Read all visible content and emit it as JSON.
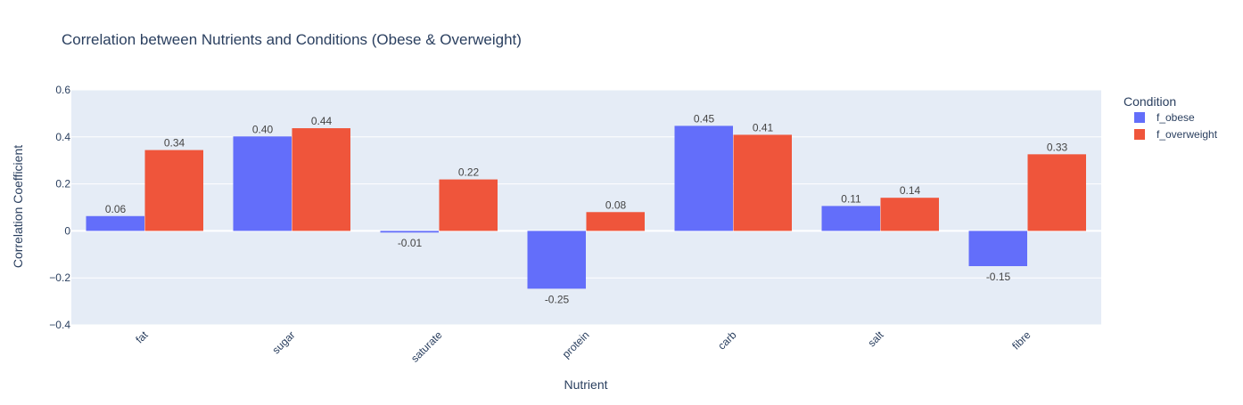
{
  "chart_data": {
    "type": "bar",
    "title": "Correlation between Nutrients and Conditions (Obese & Overweight)",
    "xlabel": "Nutrient",
    "ylabel": "Correlation Coefficient",
    "ylim": [
      -0.4,
      0.6
    ],
    "yticks": [
      -0.4,
      -0.2,
      0,
      0.2,
      0.4,
      0.6
    ],
    "ytick_labels": [
      "−0.4",
      "−0.2",
      "0",
      "0.2",
      "0.4",
      "0.6"
    ],
    "categories": [
      "fat",
      "sugar",
      "saturate",
      "protein",
      "carb",
      "salt",
      "fibre"
    ],
    "series": [
      {
        "name": "f_obese",
        "color": "#636efa",
        "values": [
          0.063,
          0.402,
          -0.007,
          -0.246,
          0.447,
          0.106,
          -0.15
        ],
        "labels": [
          "0.06",
          "0.40",
          "-0.01",
          "-0.25",
          "0.45",
          "0.11",
          "-0.15"
        ]
      },
      {
        "name": "f_overweight",
        "color": "#ef553b",
        "values": [
          0.344,
          0.437,
          0.219,
          0.08,
          0.409,
          0.141,
          0.326
        ],
        "labels": [
          "0.34",
          "0.44",
          "0.22",
          "0.08",
          "0.41",
          "0.14",
          "0.33"
        ]
      }
    ],
    "legend_title": "Condition",
    "legend_position": "top-right",
    "grid": true,
    "colors": {
      "plot_background": "#e5ecf6",
      "grid": "#ffffff",
      "text": "#2a3f5f",
      "label_text": "#444444"
    }
  }
}
